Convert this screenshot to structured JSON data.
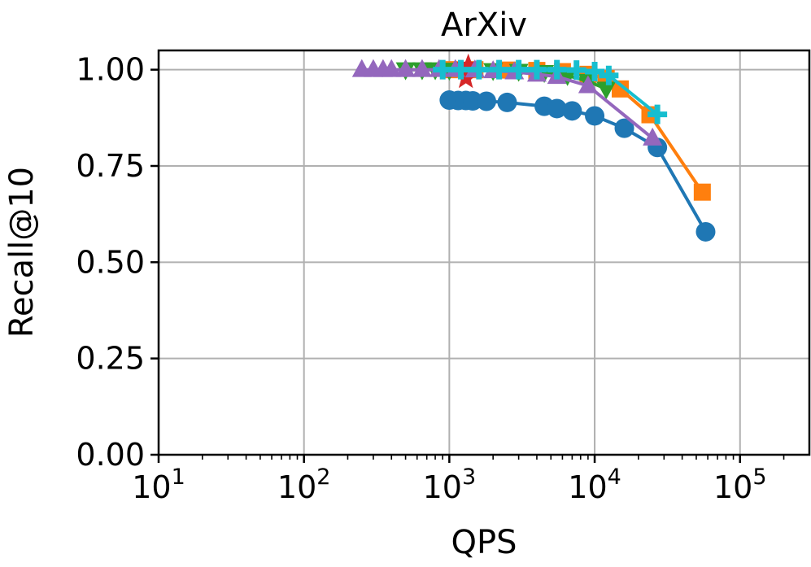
{
  "chart_data": {
    "type": "line",
    "title": "ArXiv",
    "xlabel": "QPS",
    "ylabel": "Recall@10",
    "xscale": "log",
    "xlim": [
      10,
      300000
    ],
    "ylim": [
      0,
      1.05
    ],
    "xticks": [
      {
        "base": "10",
        "exp": "1"
      },
      {
        "base": "10",
        "exp": "2"
      },
      {
        "base": "10",
        "exp": "3"
      },
      {
        "base": "10",
        "exp": "4"
      },
      {
        "base": "10",
        "exp": "5"
      }
    ],
    "yticks": [
      "0.00",
      "0.25",
      "0.50",
      "0.75",
      "1.00"
    ],
    "grid": true,
    "series": [
      {
        "color": "#1f77b4",
        "marker": "circle",
        "x": [
          1000,
          1150,
          1300,
          1450,
          1800,
          2500,
          4500,
          5500,
          7000,
          10000,
          16000,
          27000,
          58000
        ],
        "y": [
          0.921,
          0.92,
          0.92,
          0.919,
          0.918,
          0.915,
          0.905,
          0.899,
          0.893,
          0.88,
          0.848,
          0.798,
          0.579
        ]
      },
      {
        "color": "#ff7f0e",
        "marker": "square",
        "x": [
          1000,
          1500,
          2500,
          4000,
          6000,
          9000,
          12000,
          15000,
          24000,
          55000
        ],
        "y": [
          1.0,
          1.0,
          0.999,
          0.998,
          0.995,
          0.988,
          0.977,
          0.95,
          0.883,
          0.682
        ]
      },
      {
        "color": "#2ca02c",
        "marker": "triangle-down",
        "x": [
          500,
          650,
          800,
          1000,
          1400,
          2000,
          3000,
          4500,
          6500,
          9000,
          12000
        ],
        "y": [
          1.0,
          1.0,
          1.0,
          0.999,
          0.999,
          0.998,
          0.996,
          0.993,
          0.985,
          0.97,
          0.95
        ]
      },
      {
        "color": "#d62728",
        "marker": "star",
        "x": [
          1300,
          1350
        ],
        "y": [
          0.978,
          1.01
        ]
      },
      {
        "color": "#9467bd",
        "marker": "triangle-up",
        "x": [
          250,
          300,
          350,
          400,
          500,
          650,
          850,
          1100,
          1500,
          2000,
          2800,
          4000,
          5500,
          9000,
          25000
        ],
        "y": [
          1.0,
          1.0,
          1.0,
          1.0,
          1.0,
          1.0,
          1.0,
          1.0,
          0.999,
          0.997,
          0.994,
          0.988,
          0.982,
          0.958,
          0.822
        ]
      },
      {
        "color": "#17becf",
        "marker": "plus",
        "x": [
          900,
          1200,
          1600,
          2200,
          3000,
          4000,
          5500,
          7500,
          10000,
          12500,
          27000
        ],
        "y": [
          1.0,
          1.0,
          1.0,
          1.0,
          1.0,
          1.0,
          1.0,
          0.999,
          0.995,
          0.985,
          0.884
        ]
      }
    ]
  }
}
